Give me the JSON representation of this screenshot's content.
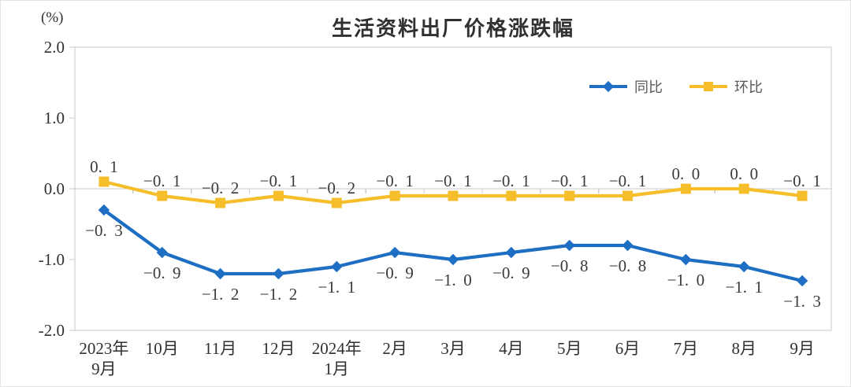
{
  "chart_data": {
    "type": "line",
    "title": "生活资料出厂价格涨跌幅",
    "unit": "(%)",
    "xlabel": "",
    "ylabel": "(%)",
    "ylim": [
      -2.0,
      2.0
    ],
    "yticks": [
      2.0,
      1.0,
      0.0,
      -1.0,
      -2.0
    ],
    "grid": false,
    "legend_position": "top-right-inside",
    "categories": [
      "2023年\n9月",
      "10月",
      "11月",
      "12月",
      "2024年\n1月",
      "2月",
      "3月",
      "4月",
      "5月",
      "6月",
      "7月",
      "8月",
      "9月"
    ],
    "series": [
      {
        "name": "同比",
        "marker": "diamond",
        "color": "#1e6fc4",
        "label_position": "below",
        "values": [
          -0.3,
          -0.9,
          -1.2,
          -1.2,
          -1.1,
          -0.9,
          -1.0,
          -0.9,
          -0.8,
          -0.8,
          -1.0,
          -1.1,
          -1.3
        ]
      },
      {
        "name": "环比",
        "marker": "square",
        "color": "#f5be2a",
        "label_position": "above",
        "values": [
          0.1,
          -0.1,
          -0.2,
          -0.1,
          -0.2,
          -0.1,
          -0.1,
          -0.1,
          -0.1,
          -0.1,
          0.0,
          0.0,
          -0.1
        ]
      }
    ]
  },
  "colors": {
    "axis": "#c9c9c9",
    "text": "#303030",
    "data_label": "#3a3a3a",
    "legend_text": "#585858",
    "background": "#ffffff"
  }
}
